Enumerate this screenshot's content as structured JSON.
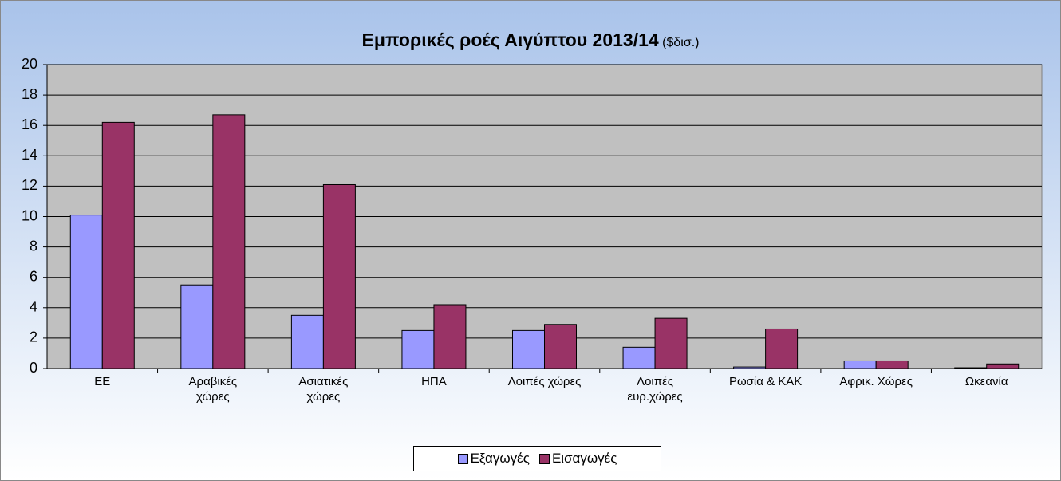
{
  "chart_data": {
    "type": "bar",
    "title": "Εμπορικές ροές Αιγύπτου 2013/14",
    "subtitle": "($δισ.)",
    "categories": [
      "ΕΕ",
      "Αραβικές\nχώρες",
      "Ασιατικές\nχώρες",
      "ΗΠΑ",
      "Λοιπές χώρες",
      "Λοιπές\nευρ.χώρες",
      "Ρωσία & ΚΑΚ",
      "Αφρικ. Χώρες",
      "Ωκεανία"
    ],
    "series": [
      {
        "name": "Εξαγωγές",
        "color": "#9999ff",
        "values": [
          10.1,
          5.5,
          3.5,
          2.5,
          2.5,
          1.4,
          0.1,
          0.5,
          0.05
        ]
      },
      {
        "name": "Εισαγωγές",
        "color": "#993366",
        "values": [
          16.2,
          16.7,
          12.1,
          4.2,
          2.9,
          3.3,
          2.6,
          0.5,
          0.3
        ]
      }
    ],
    "ylim": [
      0,
      20
    ],
    "yticks": [
      0,
      2,
      4,
      6,
      8,
      10,
      12,
      14,
      16,
      18,
      20
    ],
    "grid": true
  }
}
